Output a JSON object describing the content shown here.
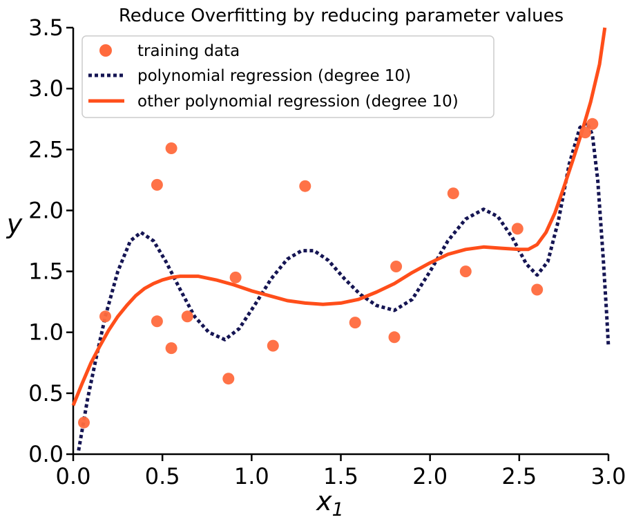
{
  "chart_data": {
    "type": "scatter",
    "title": "Reduce Overfitting by reducing parameter values",
    "xlabel": "x",
    "xlabel_subscript": "1",
    "ylabel": "y",
    "xlim": [
      0,
      3
    ],
    "ylim": [
      0,
      3.5
    ],
    "xticks": [
      0.0,
      0.5,
      1.0,
      1.5,
      2.0,
      2.5,
      3.0
    ],
    "xtick_labels": [
      "0.0",
      "0.5",
      "1.0",
      "1.5",
      "2.0",
      "2.5",
      "3.0"
    ],
    "yticks": [
      0.0,
      0.5,
      1.0,
      1.5,
      2.0,
      2.5,
      3.0,
      3.5
    ],
    "ytick_labels": [
      "0.0",
      "0.5",
      "1.0",
      "1.5",
      "2.0",
      "2.5",
      "3.0",
      "3.5"
    ],
    "legend_position": "top-left",
    "series": [
      {
        "name": "training data",
        "kind": "scatter",
        "color": "#FF6A3D",
        "x": [
          0.06,
          0.18,
          0.47,
          0.47,
          0.55,
          0.55,
          0.64,
          0.87,
          0.91,
          1.12,
          1.3,
          1.58,
          1.8,
          1.81,
          2.13,
          2.2,
          2.49,
          2.6,
          2.87,
          2.91
        ],
        "y": [
          0.26,
          1.13,
          2.21,
          1.09,
          2.51,
          0.87,
          1.13,
          0.62,
          1.45,
          0.89,
          2.2,
          1.08,
          0.96,
          1.54,
          2.14,
          1.5,
          1.85,
          1.35,
          2.64,
          2.71
        ]
      },
      {
        "name": "polynomial regression (degree 10)",
        "kind": "line",
        "style": "dotted",
        "color": "#151553",
        "x": [
          0.03,
          0.08,
          0.13,
          0.18,
          0.25,
          0.32,
          0.38,
          0.45,
          0.52,
          0.6,
          0.68,
          0.76,
          0.85,
          0.93,
          1.02,
          1.11,
          1.2,
          1.28,
          1.35,
          1.43,
          1.52,
          1.61,
          1.7,
          1.8,
          1.9,
          2.0,
          2.1,
          2.2,
          2.3,
          2.38,
          2.46,
          2.54,
          2.6,
          2.66,
          2.72,
          2.78,
          2.84,
          2.88,
          2.91,
          2.94,
          2.97,
          2.99,
          3.0
        ],
        "y": [
          0.03,
          0.45,
          0.8,
          1.13,
          1.5,
          1.75,
          1.82,
          1.75,
          1.58,
          1.35,
          1.13,
          1.0,
          0.94,
          1.03,
          1.23,
          1.44,
          1.6,
          1.67,
          1.67,
          1.59,
          1.44,
          1.31,
          1.22,
          1.18,
          1.27,
          1.5,
          1.75,
          1.93,
          2.01,
          1.95,
          1.78,
          1.56,
          1.47,
          1.58,
          1.92,
          2.38,
          2.68,
          2.72,
          2.62,
          2.25,
          1.62,
          1.15,
          0.88
        ]
      },
      {
        "name": "other polynomial regression (degree 10)",
        "kind": "line",
        "style": "solid",
        "color": "#FF4E1A",
        "x": [
          0.0,
          0.05,
          0.1,
          0.15,
          0.2,
          0.25,
          0.3,
          0.35,
          0.4,
          0.45,
          0.5,
          0.55,
          0.6,
          0.65,
          0.7,
          0.8,
          0.9,
          1.0,
          1.1,
          1.2,
          1.3,
          1.4,
          1.5,
          1.6,
          1.7,
          1.8,
          1.9,
          2.0,
          2.1,
          2.2,
          2.3,
          2.4,
          2.5,
          2.55,
          2.6,
          2.65,
          2.7,
          2.75,
          2.8,
          2.85,
          2.9,
          2.95,
          2.98
        ],
        "y": [
          0.4,
          0.58,
          0.75,
          0.89,
          1.02,
          1.13,
          1.22,
          1.3,
          1.36,
          1.4,
          1.43,
          1.45,
          1.46,
          1.46,
          1.46,
          1.43,
          1.39,
          1.34,
          1.3,
          1.26,
          1.24,
          1.23,
          1.24,
          1.27,
          1.33,
          1.4,
          1.49,
          1.57,
          1.64,
          1.68,
          1.7,
          1.69,
          1.68,
          1.68,
          1.72,
          1.82,
          1.98,
          2.19,
          2.41,
          2.64,
          2.89,
          3.2,
          3.5
        ]
      }
    ]
  }
}
